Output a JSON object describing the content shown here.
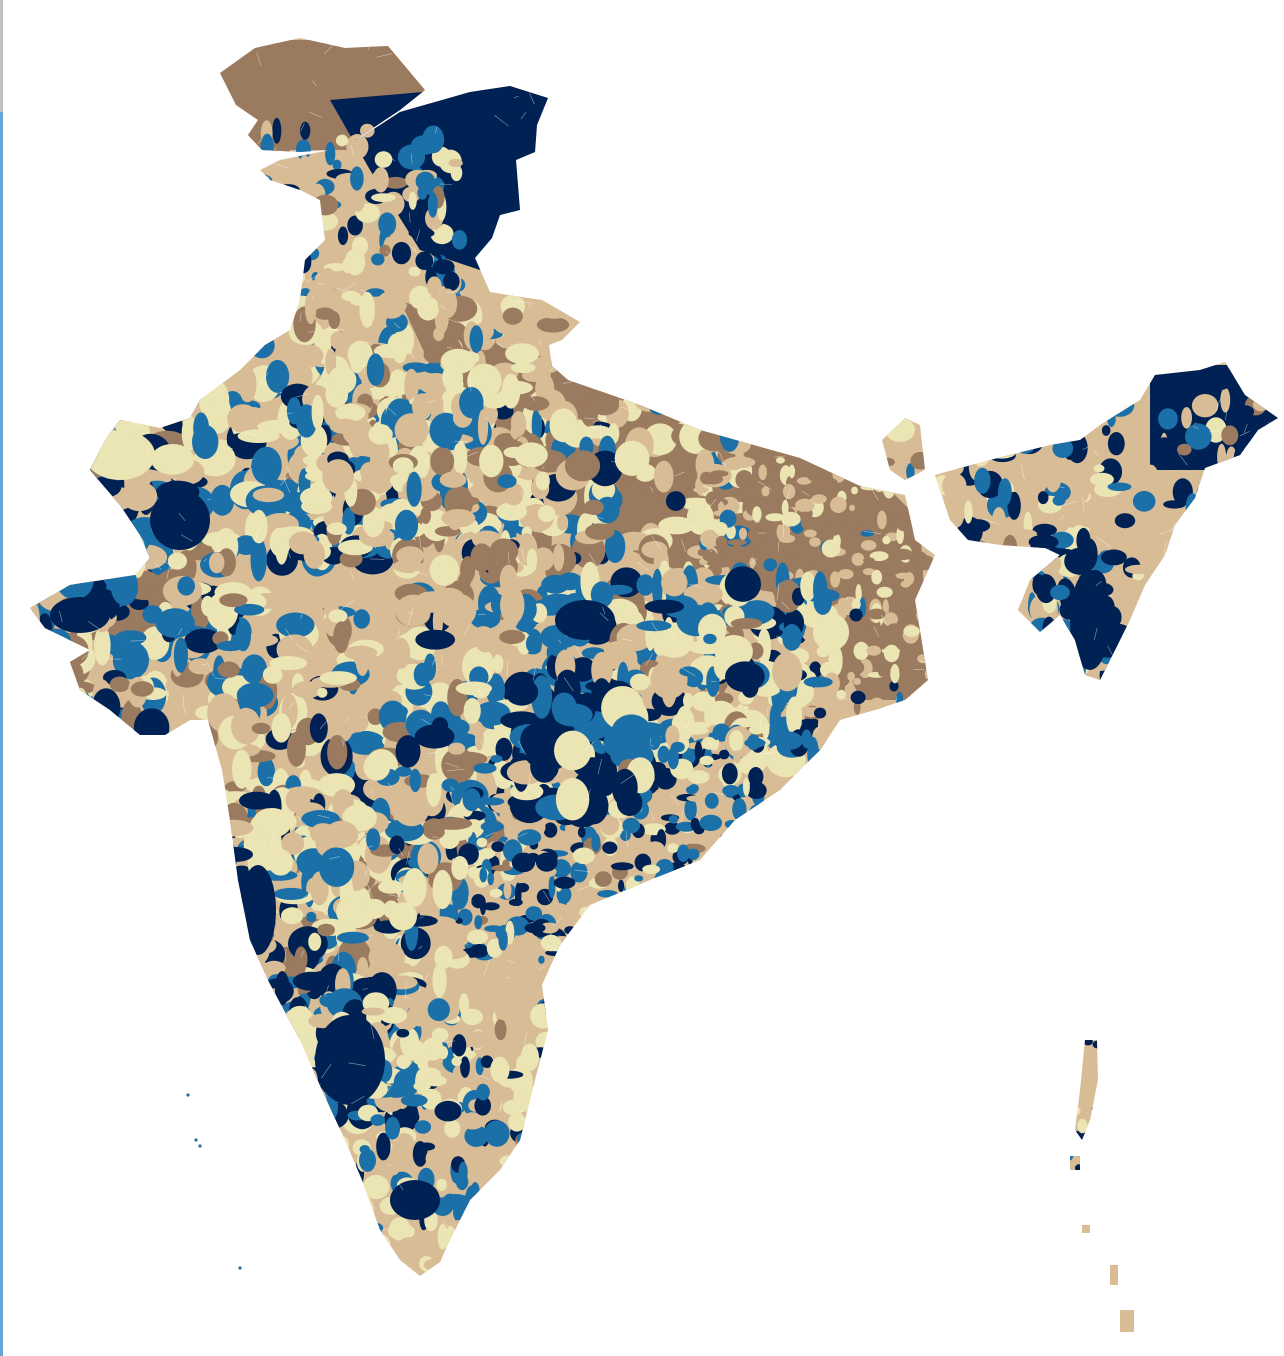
{
  "map": {
    "region": "India",
    "granularity": "sub-district",
    "legend_shown": false,
    "title_shown": false
  },
  "palette": {
    "dark_brown": "#9b7b5f",
    "tan": "#d8bc95",
    "cream": "#ebe4b3",
    "mid_blue": "#1b70a8",
    "navy": "#002153",
    "boundary": "#ffffff",
    "edge_grey": "#bfbfbf",
    "edge_blue": "#6aa3d6"
  },
  "color_classes": [
    "dark_brown",
    "tan",
    "cream",
    "mid_blue",
    "navy"
  ]
}
